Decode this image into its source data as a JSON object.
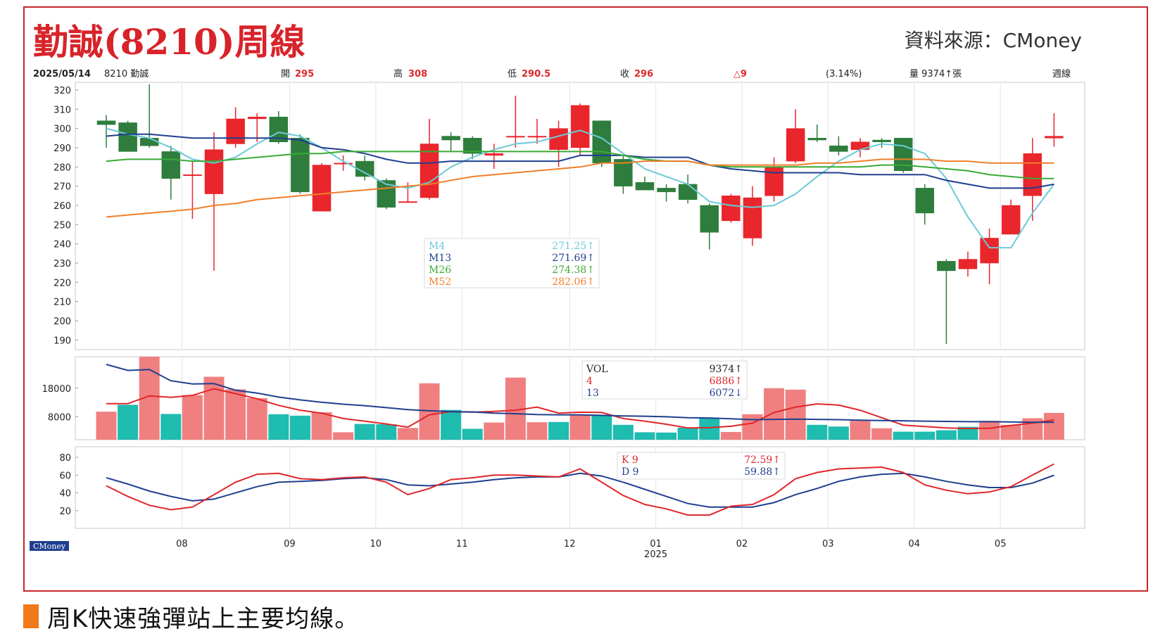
{
  "header": {
    "title": "勤誠(8210)周線",
    "source": "資料來源：CMoney"
  },
  "info_bar": {
    "date": "2025/05/14",
    "symbol": "8210 勤誠",
    "open_label": "開",
    "open": "295",
    "high_label": "高",
    "high": "308",
    "low_label": "低",
    "low": "290.5",
    "close_label": "收",
    "close": "296",
    "change": "△9",
    "change_pct": "(3.14%)",
    "volume": "量 9374↑張",
    "period": "週線"
  },
  "watermark": "CMoney",
  "caption": "周K快速強彈站上主要均線。",
  "colors": {
    "up": "#e8262b",
    "down": "#2e7d3c",
    "vol_up": "#f08080",
    "vol_down": "#1fbcb0",
    "m4": "#6cc9d8",
    "m13": "#1f3f8f",
    "m26": "#3aaa35",
    "m52": "#f07f2a",
    "k": "#e0262a",
    "d": "#1f3f8f"
  },
  "chart_data": [
    {
      "type": "candlestick",
      "name": "price",
      "yticks": [
        190,
        200,
        210,
        220,
        230,
        240,
        250,
        260,
        270,
        280,
        290,
        300,
        310,
        320
      ],
      "ylim": [
        185,
        324
      ],
      "xticks": [
        "08",
        "09",
        "10",
        "11",
        "12",
        "01",
        "02",
        "03",
        "04",
        "05"
      ],
      "xtick_index": [
        4,
        9,
        13,
        17,
        22,
        26,
        30,
        34,
        38,
        42
      ],
      "x_secondary_label": "2025",
      "candles": [
        {
          "o": 304,
          "h": 307,
          "l": 290,
          "c": 302
        },
        {
          "o": 303,
          "h": 304,
          "l": 288,
          "c": 288
        },
        {
          "o": 295,
          "h": 323,
          "l": 290,
          "c": 291
        },
        {
          "o": 288,
          "h": 291,
          "l": 263,
          "c": 274
        },
        {
          "o": 276,
          "h": 283,
          "l": 253,
          "c": 276
        },
        {
          "o": 266,
          "h": 298,
          "l": 226,
          "c": 289
        },
        {
          "o": 292,
          "h": 311,
          "l": 290,
          "c": 305
        },
        {
          "o": 305,
          "h": 308,
          "l": 293,
          "c": 306
        },
        {
          "o": 306,
          "h": 309,
          "l": 292,
          "c": 293
        },
        {
          "o": 295,
          "h": 297,
          "l": 266,
          "c": 267
        },
        {
          "o": 257,
          "h": 282,
          "l": 257,
          "c": 281
        },
        {
          "o": 282,
          "h": 286,
          "l": 278,
          "c": 282
        },
        {
          "o": 283,
          "h": 286,
          "l": 273,
          "c": 275
        },
        {
          "o": 273,
          "h": 274,
          "l": 258,
          "c": 259
        },
        {
          "o": 262,
          "h": 272,
          "l": 262,
          "c": 262
        },
        {
          "o": 264,
          "h": 305,
          "l": 263,
          "c": 292
        },
        {
          "o": 296,
          "h": 298,
          "l": 288,
          "c": 294
        },
        {
          "o": 295,
          "h": 296,
          "l": 284,
          "c": 287
        },
        {
          "o": 286,
          "h": 292,
          "l": 279,
          "c": 287
        },
        {
          "o": 296,
          "h": 317,
          "l": 290,
          "c": 296
        },
        {
          "o": 296,
          "h": 305,
          "l": 292,
          "c": 296
        },
        {
          "o": 289,
          "h": 304,
          "l": 280,
          "c": 300
        },
        {
          "o": 290,
          "h": 313,
          "l": 286,
          "c": 312
        },
        {
          "o": 304,
          "h": 304,
          "l": 280,
          "c": 282
        },
        {
          "o": 284,
          "h": 286,
          "l": 266,
          "c": 270
        },
        {
          "o": 272,
          "h": 275,
          "l": 268,
          "c": 268
        },
        {
          "o": 269,
          "h": 271,
          "l": 262,
          "c": 267
        },
        {
          "o": 271,
          "h": 276,
          "l": 261,
          "c": 263
        },
        {
          "o": 260,
          "h": 261,
          "l": 237,
          "c": 246
        },
        {
          "o": 252,
          "h": 266,
          "l": 251,
          "c": 265
        },
        {
          "o": 243,
          "h": 270,
          "l": 239,
          "c": 264
        },
        {
          "o": 265,
          "h": 285,
          "l": 262,
          "c": 280
        },
        {
          "o": 283,
          "h": 310,
          "l": 282,
          "c": 300
        },
        {
          "o": 295,
          "h": 302,
          "l": 293,
          "c": 294
        },
        {
          "o": 291,
          "h": 296,
          "l": 286,
          "c": 288
        },
        {
          "o": 289,
          "h": 295,
          "l": 285,
          "c": 293
        },
        {
          "o": 294,
          "h": 295,
          "l": 290,
          "c": 293
        },
        {
          "o": 295,
          "h": 295,
          "l": 277,
          "c": 278
        },
        {
          "o": 269,
          "h": 271,
          "l": 250,
          "c": 256
        },
        {
          "o": 231,
          "h": 232,
          "l": 188,
          "c": 226
        },
        {
          "o": 227,
          "h": 236,
          "l": 223,
          "c": 232
        },
        {
          "o": 230,
          "h": 248,
          "l": 219,
          "c": 243
        },
        {
          "o": 245,
          "h": 263,
          "l": 245,
          "c": 260
        },
        {
          "o": 265,
          "h": 295,
          "l": 252,
          "c": 287
        },
        {
          "o": 295,
          "h": 308,
          "l": 290.5,
          "c": 296
        }
      ],
      "series": [
        {
          "name": "M4",
          "value": "271.25↑",
          "values": [
            300,
            297,
            295,
            290,
            284,
            282,
            285,
            292,
            298,
            296,
            290,
            283,
            277,
            271,
            269,
            272,
            280,
            285,
            289,
            292,
            293,
            296,
            299,
            295,
            287,
            279,
            275,
            271,
            262,
            260,
            259,
            260,
            266,
            275,
            283,
            289,
            292,
            291,
            287,
            274,
            254,
            238,
            238,
            256,
            271
          ]
        },
        {
          "name": "M13",
          "value": "271.69↑",
          "values": [
            296,
            297,
            297,
            296,
            295,
            295,
            295,
            295,
            295,
            294,
            290,
            289,
            287,
            284,
            282,
            282,
            283,
            283,
            283,
            283,
            283,
            283,
            286,
            286,
            286,
            285,
            285,
            285,
            281,
            279,
            278,
            277,
            277,
            277,
            277,
            276,
            276,
            276,
            276,
            273,
            271,
            269,
            269,
            269,
            271
          ]
        },
        {
          "name": "M26",
          "value": "274.38↑",
          "values": [
            283,
            284,
            284,
            284,
            283,
            283,
            284,
            285,
            286,
            287,
            287,
            288,
            288,
            288,
            288,
            288,
            288,
            288,
            288,
            288,
            288,
            288,
            288,
            288,
            286,
            284,
            283,
            283,
            281,
            280,
            280,
            280,
            280,
            280,
            280,
            280,
            281,
            281,
            280,
            279,
            278,
            276,
            275,
            274,
            274
          ]
        },
        {
          "name": "M52",
          "value": "282.06↑",
          "values": [
            254,
            255,
            256,
            257,
            258,
            260,
            261,
            263,
            264,
            265,
            266,
            267,
            268,
            269,
            270,
            271,
            273,
            275,
            276,
            277,
            278,
            279,
            280,
            282,
            282,
            283,
            283,
            283,
            281,
            281,
            281,
            281,
            281,
            282,
            282,
            283,
            284,
            284,
            284,
            283,
            283,
            282,
            282,
            282,
            282
          ]
        }
      ]
    },
    {
      "type": "bar",
      "name": "volume",
      "yticks": [
        8000,
        18000
      ],
      "ylim": [
        0,
        29000
      ],
      "values": [
        9800,
        12200,
        29000,
        9000,
        15600,
        22000,
        17600,
        14500,
        8900,
        8400,
        9600,
        2600,
        5500,
        5400,
        4100,
        19700,
        10400,
        3800,
        6000,
        21700,
        6100,
        6200,
        8500,
        8500,
        5200,
        2600,
        2500,
        4200,
        7600,
        2700,
        8900,
        18000,
        17500,
        5200,
        4600,
        6600,
        4000,
        2800,
        2800,
        3300,
        4500,
        6600,
        5200,
        7500,
        9374
      ],
      "up": [
        true,
        false,
        true,
        false,
        true,
        true,
        true,
        true,
        false,
        false,
        true,
        true,
        false,
        false,
        true,
        true,
        false,
        false,
        true,
        true,
        true,
        false,
        true,
        false,
        false,
        false,
        false,
        false,
        false,
        true,
        true,
        true,
        true,
        false,
        false,
        true,
        true,
        false,
        false,
        false,
        false,
        true,
        true,
        true,
        true
      ],
      "series": [
        {
          "name": "VOL",
          "value": "9374↑"
        },
        {
          "name": "4",
          "value": "6886↑",
          "values": [
            12600,
            12600,
            15300,
            14800,
            15500,
            17800,
            16100,
            14300,
            12000,
            10300,
            9300,
            7400,
            6500,
            5500,
            4400,
            8700,
            9800,
            9600,
            9900,
            10300,
            11400,
            9300,
            9600,
            9500,
            7400,
            6500,
            5400,
            4100,
            4200,
            4700,
            5800,
            9500,
            11400,
            12500,
            12100,
            10300,
            7700,
            5100,
            4600,
            4100,
            3900,
            4000,
            5000,
            5800,
            6886
          ]
        },
        {
          "name": "13",
          "value": "6072↓",
          "values": [
            26300,
            24200,
            24500,
            20600,
            19500,
            19600,
            17300,
            16300,
            14900,
            13900,
            13100,
            12400,
            11900,
            11200,
            10500,
            10100,
            9800,
            9700,
            9300,
            9100,
            8800,
            8700,
            8700,
            8500,
            8300,
            8200,
            8000,
            7700,
            7600,
            7300,
            7000,
            7100,
            7200,
            7100,
            7000,
            6800,
            6700,
            6600,
            6500,
            6400,
            6300,
            6300,
            6200,
            6100,
            6072
          ]
        }
      ]
    },
    {
      "type": "line",
      "name": "KD",
      "yticks": [
        20,
        40,
        60,
        80
      ],
      "ylim": [
        0,
        92
      ],
      "series": [
        {
          "name": "K 9",
          "value": "72.59↑",
          "values": [
            48,
            36,
            26,
            21,
            24,
            38,
            52,
            61,
            62,
            56,
            55,
            57,
            58,
            52,
            38,
            45,
            55,
            57,
            60,
            60,
            59,
            58,
            67,
            52,
            37,
            27,
            22,
            15,
            15,
            25,
            27,
            38,
            56,
            63,
            67,
            68,
            69,
            63,
            49,
            43,
            39,
            41,
            47,
            60,
            72.59
          ]
        },
        {
          "name": "D 9",
          "value": "59.88↑",
          "values": [
            57,
            50,
            42,
            36,
            31,
            33,
            40,
            47,
            52,
            53,
            54,
            56,
            57,
            55,
            49,
            48,
            50,
            52,
            55,
            57,
            58,
            58,
            62,
            59,
            52,
            44,
            36,
            28,
            24,
            24,
            24,
            29,
            38,
            45,
            53,
            58,
            61,
            62,
            58,
            53,
            49,
            46,
            46,
            51,
            59.88
          ]
        }
      ]
    }
  ]
}
